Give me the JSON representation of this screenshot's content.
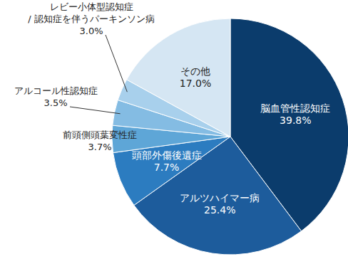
{
  "chart_data": {
    "type": "pie",
    "categories": [
      "脳血管性認知症",
      "アルツハイマー病",
      "頭部外傷後遺症",
      "前頭側頭葉変性症",
      "アルコール性認知症",
      "レビー小体型認知症\n/ 認知症を伴うパーキンソン病",
      "その他"
    ],
    "values": [
      39.8,
      25.4,
      7.7,
      3.7,
      3.5,
      3.0,
      17.0
    ],
    "value_labels": [
      "39.8%",
      "25.4%",
      "7.7%",
      "3.7%",
      "3.5%",
      "3.0%",
      "17.0%"
    ],
    "colors": [
      "#0b3c6c",
      "#1d5c9c",
      "#2c7cc0",
      "#5ea6d7",
      "#84bce3",
      "#a8d0ec",
      "#d5e6f3"
    ],
    "data_labels": true
  }
}
